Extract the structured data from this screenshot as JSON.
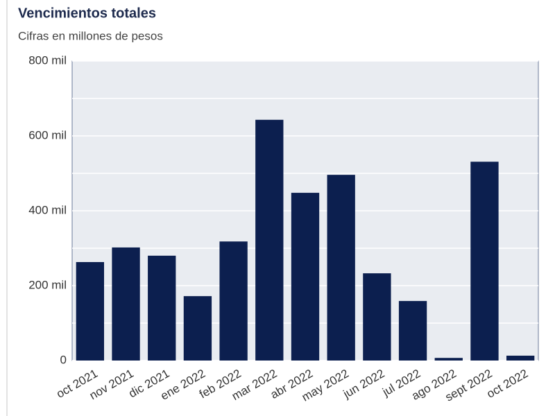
{
  "chart_data": {
    "type": "bar",
    "title": "Vencimientos totales",
    "subtitle": "Cifras en millones de pesos",
    "categories": [
      "oct 2021",
      "nov 2021",
      "dic 2021",
      "ene 2022",
      "feb 2022",
      "mar 2022",
      "abr 2022",
      "may 2022",
      "jun 2022",
      "jul 2022",
      "ago 2022",
      "sept 2022",
      "oct 2022"
    ],
    "values": [
      263000,
      302000,
      280000,
      172000,
      318000,
      643000,
      448000,
      496000,
      233000,
      159000,
      7000,
      531000,
      13000
    ],
    "color": "#0c1f4f",
    "ylim": [
      0,
      800000
    ],
    "yticks": [
      0,
      {
        "value": 200000,
        "label": "200 mil"
      },
      {
        "value": 400000,
        "label": "400 mil"
      },
      {
        "value": 600000,
        "label": "600 mil"
      },
      {
        "value": 800000,
        "label": "800 mil"
      }
    ],
    "minor_yticks": [
      100000,
      300000,
      500000,
      700000
    ],
    "grid": true
  }
}
